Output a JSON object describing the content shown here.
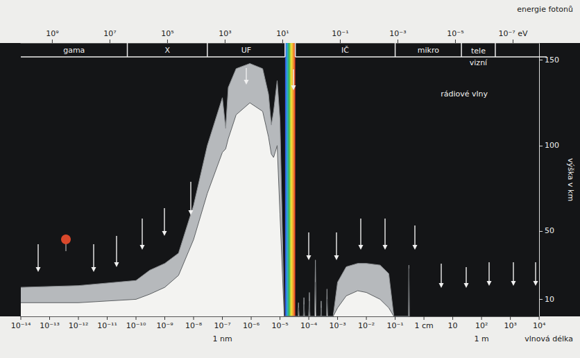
{
  "chart_data": {
    "type": "area",
    "log": "x",
    "grid": false,
    "x": [
      1e-14,
      1e-12,
      1e-10,
      3e-10,
      1e-09,
      3e-09,
      1e-08,
      3e-08,
      1e-07,
      1.3e-07,
      1.6e-07,
      3e-07,
      9e-07,
      2.5e-06,
      4e-06,
      5e-06,
      6e-06,
      8e-06,
      1e-05,
      1.4e-05,
      4.2e-05,
      4.4e-05,
      4.6e-05,
      6.5e-05,
      6.8e-05,
      7.1e-05,
      0.0001,
      0.000105,
      0.00011,
      0.00016,
      0.00017,
      0.00018,
      0.00026,
      0.00027,
      0.00028,
      0.00041,
      0.00043,
      0.00045,
      0.0007,
      0.001,
      0.002,
      0.005,
      0.01,
      0.03,
      0.06,
      0.09,
      0.29,
      0.3,
      0.31
    ],
    "series": [
      {
        "color": "#b6b9bc",
        "values": [
          17,
          18,
          21,
          27,
          31,
          37,
          65,
          100,
          128,
          110,
          134,
          145,
          148,
          145,
          130,
          112,
          120,
          138,
          115,
          0,
          0,
          8,
          0,
          0,
          11,
          0,
          0,
          14,
          0,
          0,
          33,
          0,
          0,
          9,
          0,
          0,
          16,
          0,
          0,
          20,
          29,
          31,
          31,
          30,
          25,
          0,
          0,
          30,
          0
        ]
      },
      {
        "color": "#f3f3f1",
        "values": [
          8,
          8,
          10,
          13,
          17,
          24,
          45,
          72,
          96,
          98,
          104,
          118,
          125,
          120,
          105,
          95,
          93,
          100,
          60,
          0,
          0,
          5,
          0,
          0,
          7,
          0,
          0,
          9,
          0,
          0,
          20,
          0,
          0,
          5,
          0,
          0,
          10,
          0,
          0,
          5,
          12,
          15,
          14,
          10,
          5,
          0,
          0,
          28,
          0
        ]
      }
    ],
    "xlabel": "vlnová délka",
    "xlim": [
      1e-14,
      10000
    ],
    "xticks": [
      {
        "value": 1e-14,
        "label": "10⁻¹⁴"
      },
      {
        "value": 1e-13,
        "label": "10⁻¹³"
      },
      {
        "value": 1e-12,
        "label": "10⁻¹²"
      },
      {
        "value": 1e-11,
        "label": "10⁻¹¹"
      },
      {
        "value": 1e-10,
        "label": "10⁻¹⁰"
      },
      {
        "value": 1e-09,
        "label": "10⁻⁹"
      },
      {
        "value": 1e-08,
        "label": "10⁻⁸"
      },
      {
        "value": 1e-07,
        "label": "10⁻⁷"
      },
      {
        "value": 1e-06,
        "label": "10⁻⁶"
      },
      {
        "value": 1e-05,
        "label": "10⁻⁵"
      },
      {
        "value": 0.0001,
        "label": "10⁻⁴"
      },
      {
        "value": 0.001,
        "label": "10⁻³"
      },
      {
        "value": 0.01,
        "label": "10⁻²"
      },
      {
        "value": 0.1,
        "label": "10⁻¹"
      },
      {
        "value": 1,
        "label": "1 cm"
      },
      10,
      {
        "value": 100,
        "label": "10²"
      },
      {
        "value": 1000,
        "label": "10³"
      },
      {
        "value": 10000,
        "label": "10⁴"
      }
    ],
    "x_secondary_labels": [
      {
        "value": 1e-07,
        "label": "1 nm"
      },
      {
        "value": 100,
        "label": "1 m"
      }
    ],
    "x2label": "energie fotonů",
    "x2lim": [
      12400000000,
      1.24e-08
    ],
    "x2ticks": [
      {
        "value": 1000000000,
        "label": "10⁹"
      },
      {
        "value": 10000000,
        "label": "10⁷"
      },
      {
        "value": 100000,
        "label": "10⁵"
      },
      {
        "value": 1000,
        "label": "10³"
      },
      {
        "value": 10,
        "label": "10¹"
      },
      {
        "value": 0.1,
        "label": "10⁻¹"
      },
      {
        "value": 0.001,
        "label": "10⁻³"
      },
      {
        "value": 1e-05,
        "label": "10⁻⁵"
      },
      {
        "value": 1e-07,
        "label": "10⁻⁷ eV"
      }
    ],
    "ylabel": "výška v km",
    "ylim": [
      0,
      160
    ],
    "yticks": [
      10,
      50,
      100,
      150
    ],
    "regions": [
      {
        "label": "gama",
        "from": 1e-14,
        "to": 5e-11
      },
      {
        "label": "X",
        "from": 5e-11,
        "to": 3e-08
      },
      {
        "label": "UF",
        "from": 3e-08,
        "to": 1.5e-05
      },
      {
        "label": "IČ",
        "from": 3.4e-05,
        "to": 0.1
      },
      {
        "label": "mikro",
        "from": 0.1,
        "to": 20
      },
      {
        "label": "tele\nvizní",
        "from": 20,
        "to": 300
      }
    ],
    "visible_band": [
      1.5e-05,
      3.4e-05
    ],
    "annotations": [
      {
        "text": "rádiové vlny",
        "x": 25,
        "y": 130
      }
    ]
  }
}
